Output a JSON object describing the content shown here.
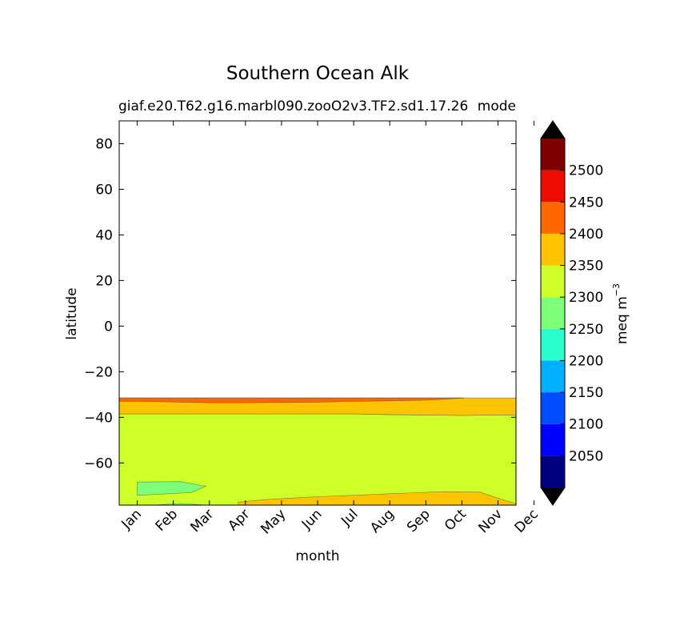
{
  "chart_data": {
    "type": "contour",
    "title": "Southern Ocean Alk",
    "subtitle_left": "giaf.e20.T62.g16.marbl090.zooO2v3.TF2.sd1.17.26",
    "subtitle_right": "mode",
    "xlabel": "month",
    "ylabel": "latitude",
    "x_tick_labels": [
      "Jan",
      "Feb",
      "Mar",
      "Apr",
      "May",
      "Jun",
      "Jul",
      "Aug",
      "Sep",
      "Oct",
      "Nov",
      "Dec"
    ],
    "y_ticks": [
      80,
      60,
      40,
      20,
      0,
      -20,
      -40,
      -60
    ],
    "y_tick_labels": [
      "80",
      "60",
      "40",
      "20",
      "0",
      "−20",
      "−40",
      "−60"
    ],
    "xlim": [
      0.5,
      11.5
    ],
    "ylim": [
      -78.5,
      90
    ],
    "data_northern_edge_lat": -31.5,
    "colorbar": {
      "label": "meq m",
      "label_superscript": "−3",
      "levels": [
        2000,
        2050,
        2100,
        2150,
        2200,
        2250,
        2300,
        2350,
        2400,
        2450,
        2500,
        2550
      ],
      "tick_values": [
        2050,
        2100,
        2150,
        2200,
        2250,
        2300,
        2350,
        2400,
        2450,
        2500
      ],
      "tick_labels": [
        "2050",
        "2100",
        "2150",
        "2200",
        "2250",
        "2300",
        "2350",
        "2400",
        "2450",
        "2500"
      ],
      "colors": [
        "#00007f",
        "#0000ff",
        "#004cff",
        "#00b0ff",
        "#29ffce",
        "#7dff7a",
        "#ceff29",
        "#ffc400",
        "#ff6800",
        "#ee0c00",
        "#7f0000"
      ],
      "extend_low_color": "#000000",
      "extend_high_color": "#000000"
    },
    "regions": [
      {
        "name": "2300-2350 background",
        "color": "#ceff29",
        "top_lat": [
          -38.5,
          -38.5,
          -38.5,
          -38.5,
          -38.5,
          -38.5,
          -38.5,
          -38.8,
          -39.0,
          -39.2,
          -39.0,
          -38.8
        ],
        "bottom_lat": -78.5
      },
      {
        "name": "2350-2400 northern band",
        "color": "#ffc400",
        "top_lat": [
          -31.5,
          -31.5,
          -31.5,
          -31.5,
          -31.5,
          -31.5,
          -31.5,
          -31.5,
          -31.5,
          -31.5,
          -31.5,
          -31.5
        ],
        "bottom_lat": [
          -38.5,
          -38.5,
          -38.5,
          -38.5,
          -38.5,
          -38.5,
          -38.5,
          -38.8,
          -39.0,
          -39.2,
          -39.0,
          -38.8
        ]
      },
      {
        "name": "2400-2450 northern edge",
        "color": "#ff6800",
        "top_lat": [
          -31.5,
          -31.5,
          -31.5,
          -31.5,
          -31.5,
          -31.5,
          -31.5,
          -31.5,
          -31.5,
          -31.5
        ],
        "bottom_lat": [
          -33.0,
          -33.3,
          -33.6,
          -33.6,
          -33.5,
          -33.4,
          -33.0,
          -32.8,
          -32.5,
          -31.6
        ],
        "months": [
          1,
          2,
          3,
          4,
          5,
          6,
          7,
          8,
          9,
          10
        ]
      },
      {
        "name": "2250-2300 low patch",
        "color": "#7dff7a",
        "points": [
          [
            1.0,
            -68.4
          ],
          [
            2.2,
            -68.2
          ],
          [
            2.9,
            -70.2
          ],
          [
            2.5,
            -73.0
          ],
          [
            1.0,
            -74.2
          ]
        ]
      },
      {
        "name": "2250-2300 bottom sliver",
        "color": "#7dff7a",
        "points": [
          [
            1.4,
            -78.5
          ],
          [
            2.2,
            -77.8
          ],
          [
            2.9,
            -78.5
          ]
        ]
      },
      {
        "name": "2350-2400 southern band",
        "color": "#ffc400",
        "points": [
          [
            3.8,
            -77.2
          ],
          [
            4.6,
            -76.0
          ],
          [
            6.0,
            -74.8
          ],
          [
            8.0,
            -73.5
          ],
          [
            9.5,
            -72.6
          ],
          [
            10.5,
            -72.8
          ],
          [
            11.2,
            -76.5
          ],
          [
            11.5,
            -77.8
          ],
          [
            11.5,
            -78.5
          ],
          [
            3.8,
            -78.5
          ]
        ]
      }
    ]
  }
}
